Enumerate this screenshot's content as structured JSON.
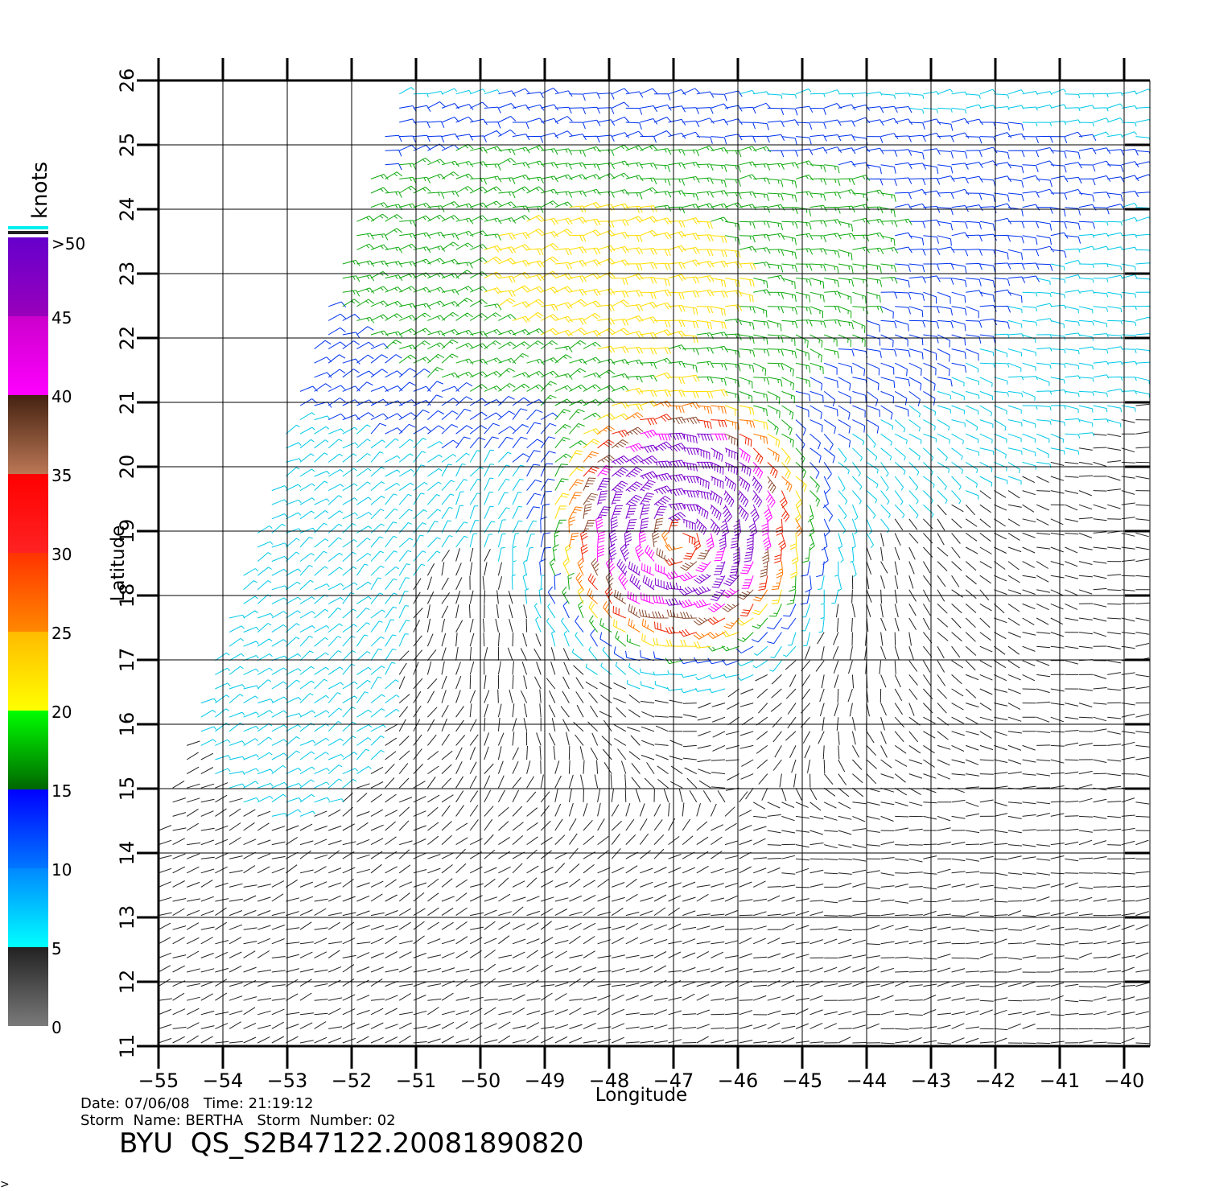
{
  "map": {
    "lon_range": [
      -55,
      -39.6
    ],
    "lat_range": [
      11,
      26
    ],
    "lon_ticks": [
      "−55",
      "−54",
      "−53",
      "−52",
      "−51",
      "−50",
      "−49",
      "−48",
      "−47",
      "−46",
      "−45",
      "−44",
      "−43",
      "−42",
      "−41",
      "−40"
    ],
    "lat_ticks": [
      "11",
      "12",
      "13",
      "14",
      "15",
      "16",
      "17",
      "18",
      "19",
      "20",
      "21",
      "22",
      "23",
      "24",
      "25",
      "26"
    ],
    "xlabel": "Longitude",
    "ylabel": "Latitude",
    "storm_center": {
      "lon": -46.9,
      "lat": 18.9
    },
    "wind_field": "wind barbs, speed in knots, cyclonic circulation"
  },
  "legend": {
    "unit": "knots",
    "labels": [
      "0",
      "5",
      "10",
      "15",
      "20",
      "25",
      "30",
      "35",
      "40",
      "45",
      ">50"
    ],
    "bands": [
      {
        "from": 0,
        "to": 5,
        "colors": [
          "#7a7a7a",
          "#222222"
        ]
      },
      {
        "from": 5,
        "to": 10,
        "colors": [
          "#00ffff",
          "#0088ff"
        ]
      },
      {
        "from": 10,
        "to": 15,
        "colors": [
          "#0077ff",
          "#0000ff"
        ]
      },
      {
        "from": 15,
        "to": 20,
        "colors": [
          "#006600",
          "#00ff00"
        ]
      },
      {
        "from": 20,
        "to": 25,
        "colors": [
          "#ffff00",
          "#ffbb00"
        ]
      },
      {
        "from": 25,
        "to": 30,
        "colors": [
          "#ff8800",
          "#ff3300"
        ]
      },
      {
        "from": 30,
        "to": 35,
        "colors": [
          "#ff2222",
          "#ff0000"
        ]
      },
      {
        "from": 35,
        "to": 40,
        "colors": [
          "#bb7755",
          "#442211"
        ]
      },
      {
        "from": 40,
        "to": 45,
        "colors": [
          "#ff00ff",
          "#cc00cc"
        ]
      },
      {
        "from": 45,
        "to": 50,
        "colors": [
          "#9900bb",
          "#6600cc"
        ]
      }
    ]
  },
  "footer": {
    "date_line": "Date: 07/06/08   Time: 21:19:12",
    "storm_line": "Storm  Name: BERTHA   Storm  Number: 02",
    "product": "BYU  QS_S2B47122.20081890820"
  },
  "corner_mark": ">"
}
